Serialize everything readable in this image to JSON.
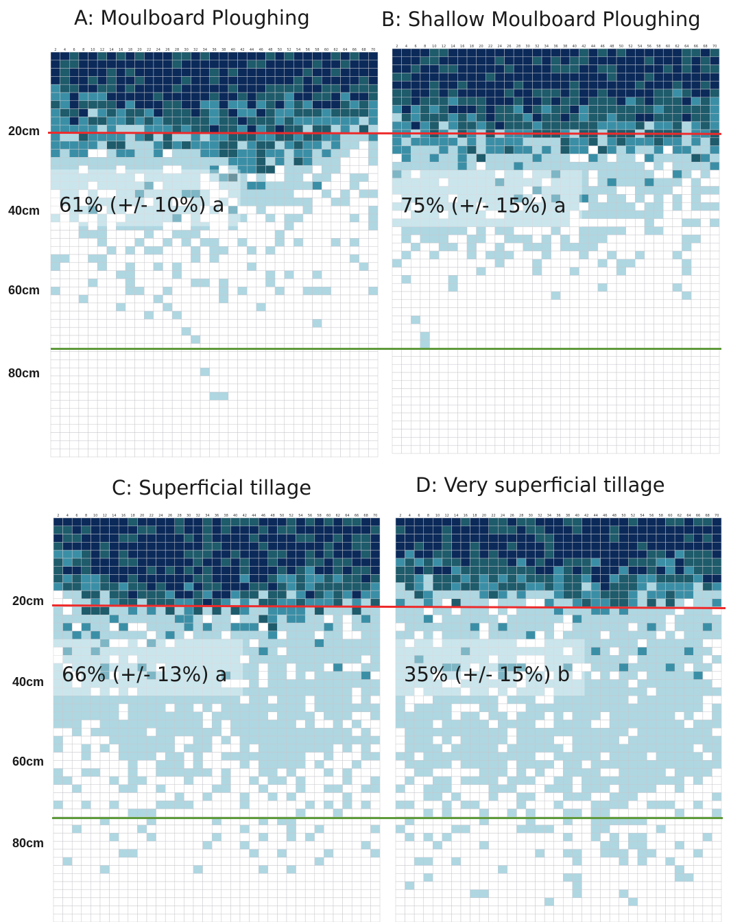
{
  "colors": {
    "level_0": "#ffffff",
    "level_1": "#aed7e2",
    "level_2": "#3a8fa6",
    "level_3": "#1e5b6b",
    "level_4": "#0b2a5a",
    "grid": "#c7c7cc",
    "red_line": "#ee2a2a",
    "green_line": "#5e9a3a"
  },
  "chart_data": [
    {
      "type": "heatmap",
      "title": "A: Moulboard Ploughing",
      "column_labels": [
        "2",
        "4",
        "6",
        "8",
        "10",
        "12",
        "14",
        "16",
        "18",
        "20",
        "22",
        "24",
        "26",
        "28",
        "30",
        "32",
        "34",
        "36",
        "38",
        "40",
        "42",
        "44",
        "46",
        "48",
        "50",
        "52",
        "54",
        "56",
        "58",
        "60",
        "62",
        "64",
        "66",
        "68",
        "70"
      ],
      "depth_labels": [
        "20cm",
        "40cm",
        "60cm",
        "80cm"
      ],
      "reference_depths_cm": [
        20,
        74
      ],
      "annotation": "61% (+/- 10%) a"
    },
    {
      "type": "heatmap",
      "title": "B: Shallow Moulboard Ploughing",
      "column_labels": [
        "2",
        "4",
        "6",
        "8",
        "10",
        "12",
        "14",
        "16",
        "18",
        "20",
        "22",
        "24",
        "26",
        "28",
        "30",
        "32",
        "34",
        "36",
        "38",
        "40",
        "42",
        "44",
        "46",
        "48",
        "50",
        "52",
        "54",
        "56",
        "58",
        "60",
        "62",
        "64",
        "66",
        "68",
        "70"
      ],
      "depth_labels": [],
      "reference_depths_cm": [
        20,
        74
      ],
      "annotation": "75% (+/- 15%) a"
    },
    {
      "type": "heatmap",
      "title": "C: Superficial tillage",
      "column_labels": [
        "2",
        "4",
        "6",
        "8",
        "10",
        "12",
        "14",
        "16",
        "18",
        "20",
        "22",
        "24",
        "26",
        "28",
        "30",
        "32",
        "34",
        "36",
        "38",
        "40",
        "42",
        "44",
        "46",
        "48",
        "50",
        "52",
        "54",
        "56",
        "58",
        "60",
        "62",
        "64",
        "66",
        "68",
        "70"
      ],
      "depth_labels": [
        "20cm",
        "40cm",
        "60cm",
        "80cm"
      ],
      "reference_depths_cm": [
        20,
        74
      ],
      "annotation": "66% (+/- 13%) a"
    },
    {
      "type": "heatmap",
      "title": "D: Very superficial tillage",
      "column_labels": [
        "2",
        "4",
        "6",
        "8",
        "10",
        "12",
        "14",
        "16",
        "18",
        "20",
        "22",
        "24",
        "26",
        "28",
        "30",
        "32",
        "34",
        "36",
        "38",
        "40",
        "42",
        "44",
        "46",
        "48",
        "50",
        "52",
        "54",
        "56",
        "58",
        "60",
        "62",
        "64",
        "66",
        "68",
        "70"
      ],
      "depth_labels": [],
      "reference_depths_cm": [
        20,
        74
      ],
      "annotation": "35% (+/- 15%) b"
    }
  ]
}
